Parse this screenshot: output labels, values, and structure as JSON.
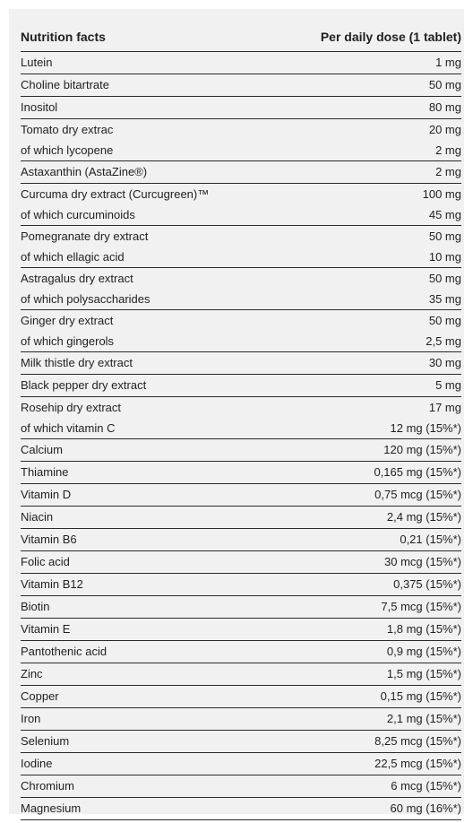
{
  "header": {
    "name": "Nutrition facts",
    "value": "Per daily dose (1 tablet)"
  },
  "rows": [
    {
      "name": "Lutein",
      "value": "1 mg"
    },
    {
      "name": "Choline bitartrate",
      "value": "50 mg"
    },
    {
      "name": "Inositol",
      "value": "80 mg"
    },
    {
      "name": "Tomato dry extrac",
      "value": "20 mg"
    },
    {
      "name": "of which lycopene",
      "value": "2 mg"
    },
    {
      "name": "Astaxanthin (AstaZine®)",
      "value": "2 mg"
    },
    {
      "name": "Curcuma dry extract (Curcugreen)™",
      "value": "100 mg"
    },
    {
      "name": "of which curcuminoids",
      "value": "45 mg"
    },
    {
      "name": "Pomegranate dry extract",
      "value": "50 mg"
    },
    {
      "name": "of which ellagic acid",
      "value": "10 mg"
    },
    {
      "name": "Astragalus dry extract",
      "value": "50 mg"
    },
    {
      "name": "of which polysaccharides",
      "value": "35 mg"
    },
    {
      "name": "Ginger dry extract",
      "value": "50 mg"
    },
    {
      "name": "of which gingerols",
      "value": "2,5 mg"
    },
    {
      "name": "Milk thistle dry extract",
      "value": "30 mg"
    },
    {
      "name": "Black pepper dry extract",
      "value": "5 mg"
    },
    {
      "name": "Rosehip dry extract",
      "value": "17 mg"
    },
    {
      "name": "of which vitamin C",
      "value": "12 mg (15%*)"
    },
    {
      "name": "Calcium",
      "value": "120 mg (15%*)"
    },
    {
      "name": "Thiamine",
      "value": "0,165 mg (15%*)"
    },
    {
      "name": "Vitamin D",
      "value": "0,75 mcg (15%*)"
    },
    {
      "name": "Niacin",
      "value": "2,4 mg (15%*)"
    },
    {
      "name": "Vitamin B6",
      "value": "0,21 (15%*)"
    },
    {
      "name": "Folic acid",
      "value": "30 mcg (15%*)"
    },
    {
      "name": "Vitamin B12",
      "value": "0,375 (15%*)"
    },
    {
      "name": "Biotin",
      "value": "7,5 mcg (15%*)"
    },
    {
      "name": "Vitamin E",
      "value": "1,8 mg (15%*)"
    },
    {
      "name": "Pantothenic acid",
      "value": "0,9 mg (15%*)"
    },
    {
      "name": "Zinc",
      "value": "1,5 mg (15%*)"
    },
    {
      "name": "Copper",
      "value": "0,15 mg (15%*)"
    },
    {
      "name": "Iron",
      "value": "2,1 mg (15%*)"
    },
    {
      "name": "Selenium",
      "value": "8,25 mcg (15%*)"
    },
    {
      "name": "Iodine",
      "value": "22,5 mcg (15%*)"
    },
    {
      "name": "Chromium",
      "value": "6 mcg (15%*)"
    },
    {
      "name": "Magnesium",
      "value": "60 mg (16%*)"
    }
  ]
}
